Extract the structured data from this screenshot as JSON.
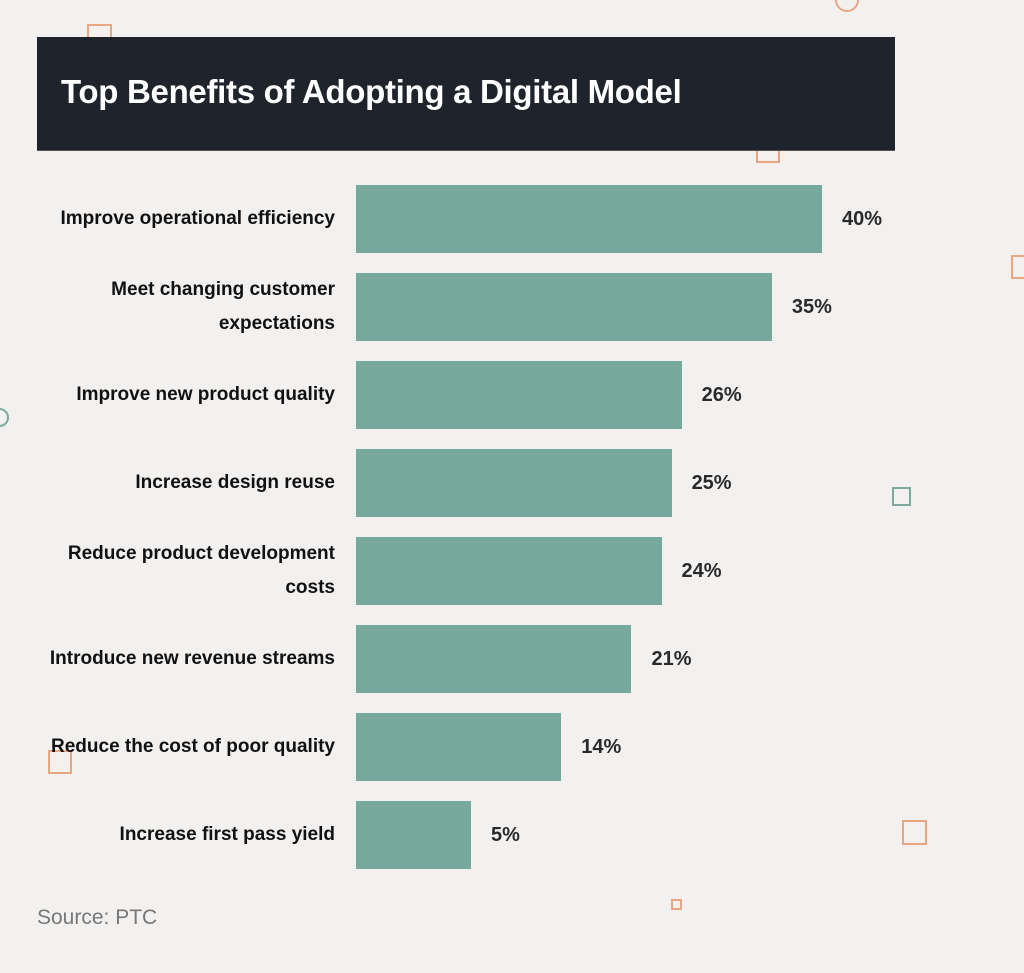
{
  "chart_data": {
    "type": "bar",
    "orientation": "horizontal",
    "title": "Top Benefits of Adopting a Digital Model",
    "categories": [
      "Improve operational efficiency",
      "Meet changing customer expectations",
      "Improve new product quality",
      "Increase design reuse",
      "Reduce product development costs",
      "Introduce new revenue streams",
      "Reduce the cost of poor quality",
      "Increase first pass yield"
    ],
    "values": [
      40,
      35,
      26,
      25,
      24,
      21,
      14,
      5
    ],
    "value_labels": [
      "40%",
      "35%",
      "26%",
      "25%",
      "24%",
      "21%",
      "14%",
      "5%"
    ],
    "unit": "%",
    "grid": false,
    "bar_color": "#76a99c",
    "source": "Source: PTC"
  }
}
